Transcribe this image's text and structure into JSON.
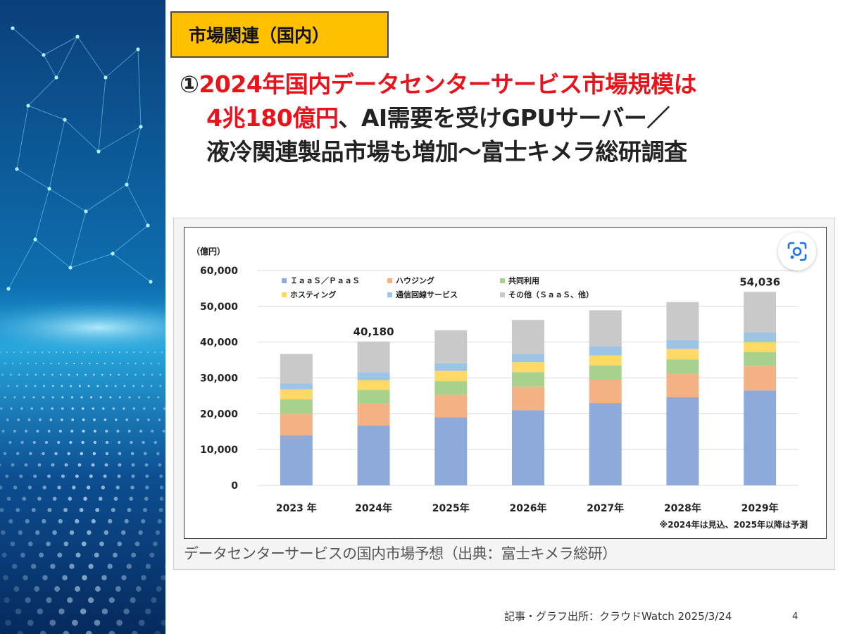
{
  "slide": {
    "tag": "市場関連（国内）",
    "headline": {
      "marker": "①",
      "red_part1": "2024年国内データセンターサービス市場規模は",
      "red_part2": "4兆180億円",
      "line2_rest": "、AI需要を受けGPUサーバー／",
      "line3": "液冷関連製品市場も増加～富士キメラ総研調査"
    },
    "caption": "データセンターサービスの国内市場予想（出典：富士キメラ総研）",
    "source": "記事・グラフ出所：クラウドWatch 2025/3/24",
    "page_number": "4",
    "lens_icon": "google-lens-icon"
  },
  "chart_data": {
    "type": "bar",
    "stacked": true,
    "unit_label": "（億円）",
    "categories": [
      "2023 年",
      "2024年",
      "2025年",
      "2026年",
      "2027年",
      "2028年",
      "2029年"
    ],
    "ylim": [
      0,
      60000
    ],
    "yticks": [
      "0",
      "10,000",
      "20,000",
      "30,000",
      "40,000",
      "50,000",
      "60,000"
    ],
    "grid": true,
    "legend_position": "top",
    "series": [
      {
        "name": "ＩａａＳ／ＰａａＳ",
        "color": "#8eaadb",
        "values": [
          14000,
          16700,
          19000,
          21000,
          23000,
          24600,
          26500
        ]
      },
      {
        "name": "ハウジング",
        "color": "#f4b183",
        "values": [
          6000,
          6100,
          6300,
          6600,
          6500,
          6600,
          6800
        ]
      },
      {
        "name": "共同利用",
        "color": "#a9d18e",
        "values": [
          4000,
          3900,
          3800,
          4000,
          4000,
          4000,
          3900
        ]
      },
      {
        "name": "ホスティング",
        "color": "#ffd966",
        "values": [
          2800,
          2700,
          2900,
          2800,
          2800,
          2900,
          2800
        ]
      },
      {
        "name": "通信回線サービス",
        "color": "#9dc3e6",
        "values": [
          1700,
          2200,
          2100,
          2300,
          2600,
          2500,
          2700
        ]
      },
      {
        "name": "その他（ＳａａＳ、他）",
        "color": "#c9c9c9",
        "values": [
          8200,
          8580,
          9200,
          9500,
          10000,
          10600,
          11336
        ]
      }
    ],
    "data_labels": [
      {
        "category": "2024年",
        "text": "40,180"
      },
      {
        "category": "2029年",
        "text": "54,036"
      }
    ],
    "note": "※2024年は見込、2025年以降は予測"
  }
}
